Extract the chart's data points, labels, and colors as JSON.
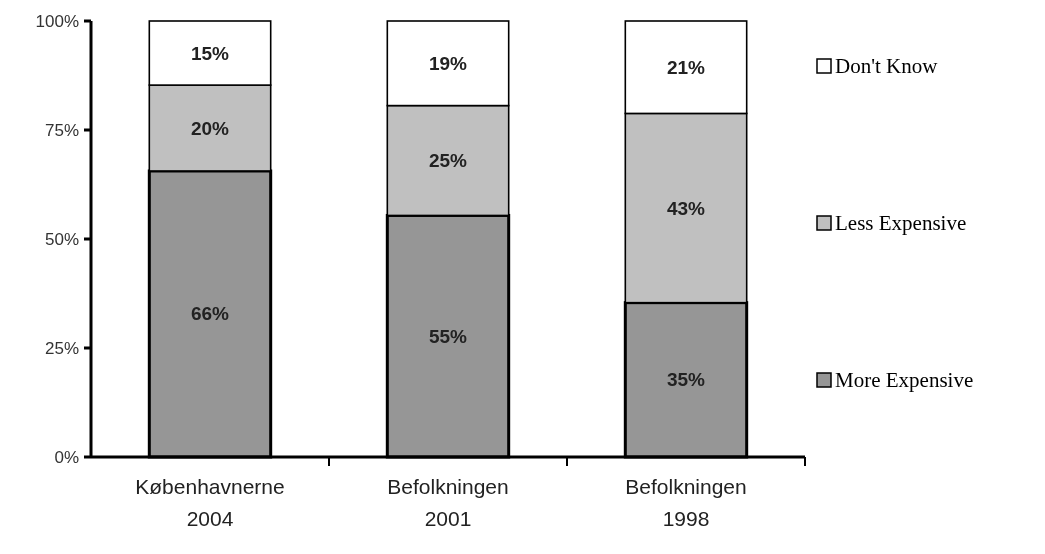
{
  "chart_data": {
    "type": "bar",
    "stacked": true,
    "categories": [
      "Københavnerne\n2004",
      "Befolkningen\n2001",
      "Befolkningen\n1998"
    ],
    "series": [
      {
        "name": "More Expensive",
        "color": "#969696",
        "values": [
          65.6,
          55.4,
          35.4
        ],
        "value_labels": [
          "66%",
          "55%",
          "35%"
        ]
      },
      {
        "name": "Less Expensive",
        "color": "#c0c0c0",
        "values": [
          19.7,
          25.2,
          43.4
        ],
        "value_labels": [
          "20%",
          "25%",
          "43%"
        ]
      },
      {
        "name": "Don't Know",
        "color": "#ffffff",
        "values": [
          14.7,
          19.4,
          21.2
        ],
        "value_labels": [
          "15%",
          "19%",
          "21%"
        ]
      }
    ],
    "ylim": [
      0,
      100
    ],
    "yticks": [
      {
        "value": 0,
        "label": "0%"
      },
      {
        "value": 25,
        "label": "25%"
      },
      {
        "value": 50,
        "label": "50%"
      },
      {
        "value": 75,
        "label": "75%"
      },
      {
        "value": 100,
        "label": "100%"
      }
    ],
    "legend": "right"
  }
}
